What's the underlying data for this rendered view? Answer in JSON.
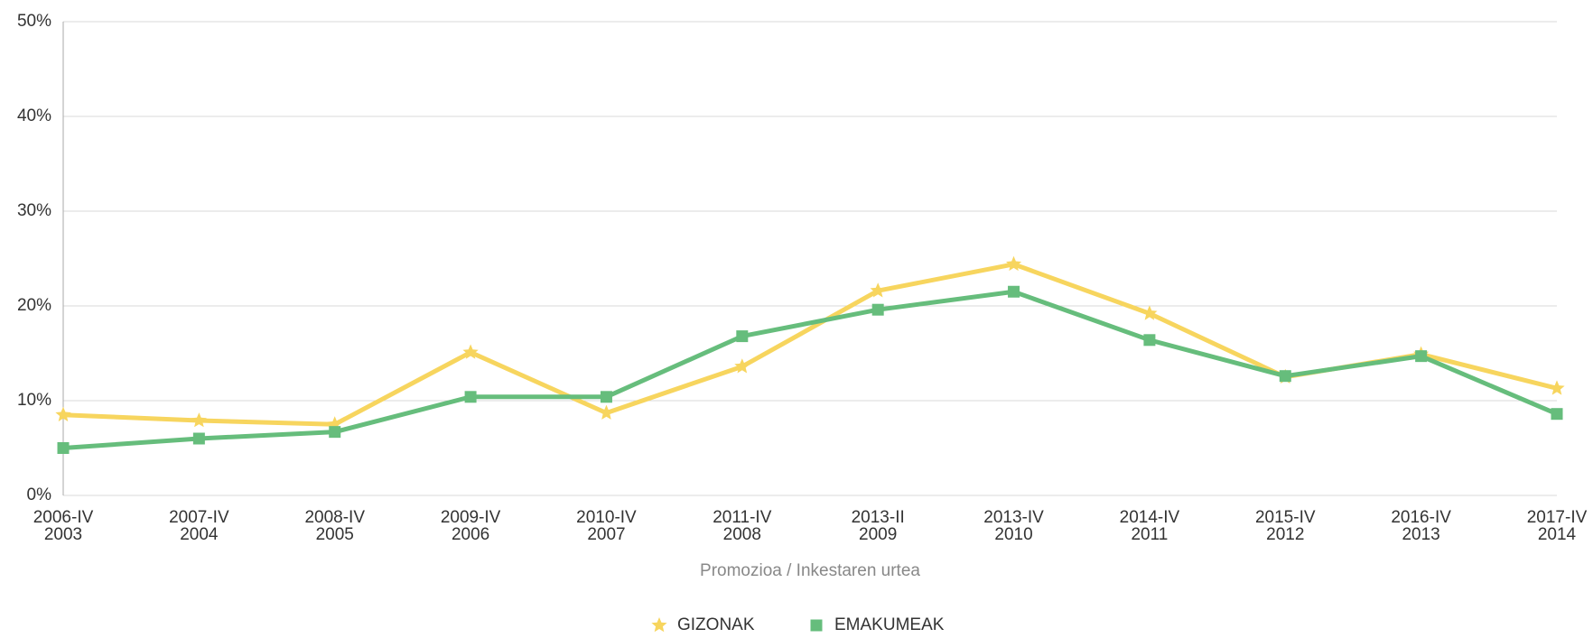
{
  "chart_data": {
    "type": "line",
    "x_label": "Promozioa / Inkestaren urtea",
    "categories": [
      [
        "2006-IV",
        "2003"
      ],
      [
        "2007-IV",
        "2004"
      ],
      [
        "2008-IV",
        "2005"
      ],
      [
        "2009-IV",
        "2006"
      ],
      [
        "2010-IV",
        "2007"
      ],
      [
        "2011-IV",
        "2008"
      ],
      [
        "2013-II",
        "2009"
      ],
      [
        "2013-IV",
        "2010"
      ],
      [
        "2014-IV",
        "2011"
      ],
      [
        "2015-IV",
        "2012"
      ],
      [
        "2016-IV",
        "2013"
      ],
      [
        "2017-IV",
        "2014"
      ]
    ],
    "series": [
      {
        "name": "GIZONAK",
        "color": "#f7d55e",
        "marker": "star",
        "values": [
          8.5,
          7.9,
          7.5,
          15.1,
          8.7,
          13.6,
          21.6,
          24.4,
          19.2,
          12.5,
          14.9,
          11.3
        ]
      },
      {
        "name": "EMAKUMEAK",
        "color": "#66bd7c",
        "marker": "square",
        "values": [
          5.0,
          6.0,
          6.7,
          10.4,
          10.4,
          16.8,
          19.6,
          21.5,
          16.4,
          12.6,
          14.7,
          8.6
        ]
      }
    ],
    "ylim": [
      0,
      50
    ],
    "yticks": [
      {
        "value": 0,
        "label": "0%"
      },
      {
        "value": 10,
        "label": "10%"
      },
      {
        "value": 20,
        "label": "20%"
      },
      {
        "value": 30,
        "label": "30%"
      },
      {
        "value": 40,
        "label": "40%"
      },
      {
        "value": 50,
        "label": "50%"
      }
    ],
    "grid": true,
    "legend": "bottom"
  }
}
